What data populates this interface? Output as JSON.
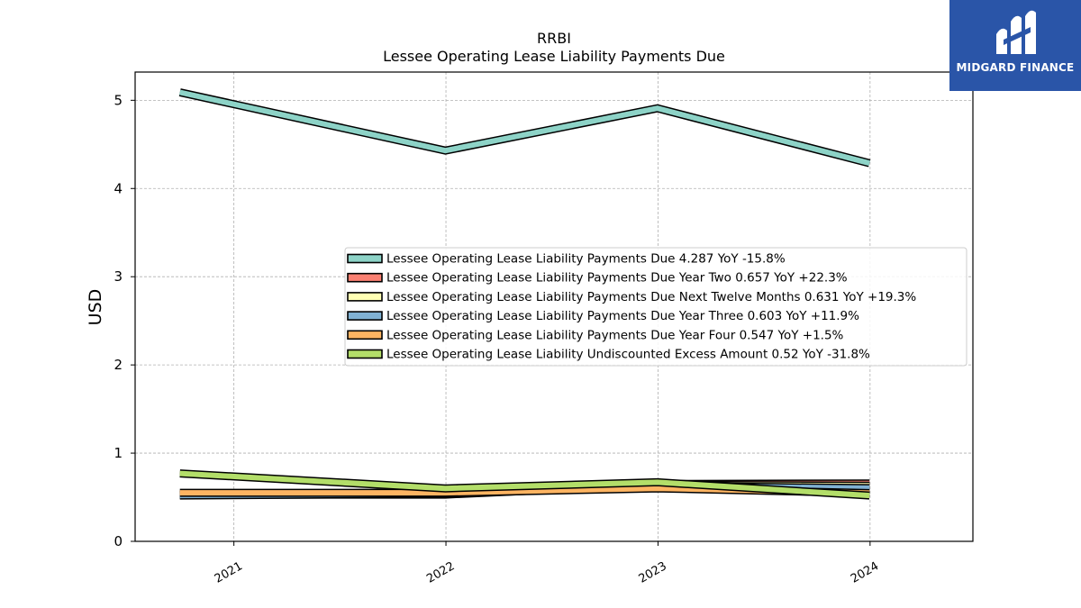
{
  "logo": {
    "text": "MIDGARD FINANCE"
  },
  "chart_data": {
    "type": "area",
    "title": "RRBI",
    "subtitle": "Lessee Operating Lease Liability Payments Due",
    "ylabel": "USD",
    "xlabel": "",
    "ylim": [
      0,
      5.32
    ],
    "yticks": [
      0,
      1,
      2,
      3,
      4,
      5
    ],
    "xlim": [
      "2020-07-15",
      "2024-06-26"
    ],
    "xticks": [
      "2021",
      "2022",
      "2023",
      "2024"
    ],
    "grid": true,
    "legend_position": "center-right",
    "x": [
      "2020-09-30",
      "2021-12-31",
      "2022-12-31",
      "2023-12-31"
    ],
    "series": [
      {
        "name": "Lessee Operating Lease Liability Payments Due",
        "legend": "Lessee Operating Lease Liability Payments Due  4.287 YoY -15.8%",
        "color": "#8dd3c7",
        "values": [
          5.09,
          4.43,
          4.91,
          4.287
        ]
      },
      {
        "name": "Lessee Operating Lease Liability Payments Due Year Two",
        "legend": "Lessee Operating Lease Liability Payments Due Year Two  0.657 YoY +22.3%",
        "color": "#fb8072",
        "values": [
          0.53,
          0.55,
          0.65,
          0.657
        ]
      },
      {
        "name": "Lessee Operating Lease Liability Payments Due Next Twelve Months",
        "legend": "Lessee Operating Lease Liability Payments Due Next Twelve Months  0.631 YoY +19.3%",
        "color": "#ffffb3",
        "values": [
          0.53,
          0.53,
          0.64,
          0.631
        ]
      },
      {
        "name": "Lessee Operating Lease Liability Payments Due Year Three",
        "legend": "Lessee Operating Lease Liability Payments Due Year Three  0.603 YoY +11.9%",
        "color": "#80b1d3",
        "values": [
          0.52,
          0.54,
          0.63,
          0.603
        ]
      },
      {
        "name": "Lessee Operating Lease Liability Payments Due Year Four",
        "legend": "Lessee Operating Lease Liability Payments Due Year Four  0.547 YoY +1.5%",
        "color": "#fdb462",
        "values": [
          0.55,
          0.55,
          0.6,
          0.547
        ]
      },
      {
        "name": "Lessee Operating Lease Liability Undiscounted Excess Amount",
        "legend": "Lessee Operating Lease Liability Undiscounted Excess Amount  0.52 YoY -31.8%",
        "color": "#b3de69",
        "values": [
          0.77,
          0.6,
          0.67,
          0.52
        ]
      }
    ]
  }
}
